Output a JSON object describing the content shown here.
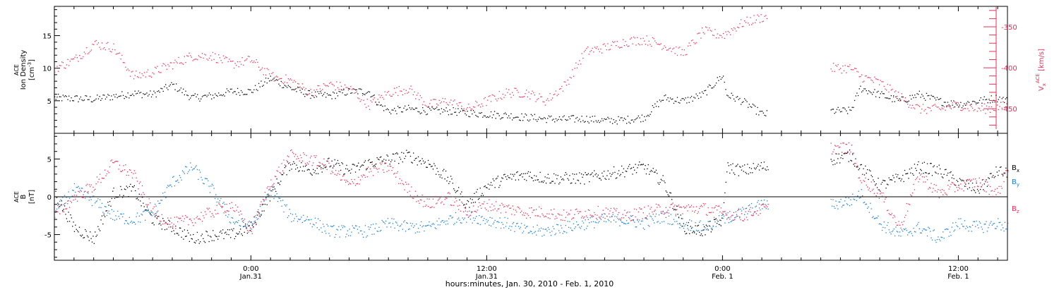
{
  "chart_data": [
    {
      "type": "scatter",
      "title": "",
      "xlabel": "hours:minutes, Jan. 30, 2010 - Feb. 1, 2010",
      "x_units": "hours since 2010-01-30 00:00",
      "xlim": [
        14.0,
        62.5
      ],
      "x_ticks": [
        {
          "x": 24,
          "label": "0:00",
          "sublabel": "Jan.31"
        },
        {
          "x": 36,
          "label": "12:00",
          "sublabel": "Jan.31"
        },
        {
          "x": 48,
          "label": "0:00",
          "sublabel": "Feb. 1"
        },
        {
          "x": 60,
          "label": "12:00",
          "sublabel": "Feb. 1"
        }
      ],
      "ylabel_left": {
        "lines": [
          "ACE",
          "Ion Density"
        ],
        "units": "[cm",
        "units_sup": "-3",
        "units_end": "]"
      },
      "ylim_left": [
        0,
        19.5
      ],
      "yticks_left": [
        5,
        10,
        15
      ],
      "ylabel_right": {
        "main": "V",
        "sub": "x",
        "sup": "ACE",
        "units": "[km/s]"
      },
      "ylim_right": [
        -480,
        -325
      ],
      "yticks_right": [
        -350,
        -400,
        -450
      ],
      "series": [
        {
          "axis": "left",
          "color": "#000000",
          "anchors": [
            [
              14.0,
              5.5
            ],
            [
              16,
              5.3
            ],
            [
              18,
              6.2
            ],
            [
              19,
              6.0
            ],
            [
              20,
              7.5
            ],
            [
              21,
              5.5
            ],
            [
              22,
              5.8
            ],
            [
              23,
              6.5
            ],
            [
              24,
              6.5
            ],
            [
              25,
              8.5
            ],
            [
              26,
              7.0
            ],
            [
              27,
              6.0
            ],
            [
              28,
              5.8
            ],
            [
              29,
              6.5
            ],
            [
              30,
              6.5
            ],
            [
              30.5,
              4.5
            ],
            [
              31,
              3.5
            ],
            [
              32,
              3.8
            ],
            [
              33,
              3.5
            ],
            [
              34,
              3.5
            ],
            [
              35,
              3.2
            ],
            [
              36,
              3.0
            ],
            [
              37,
              2.8
            ],
            [
              38,
              2.5
            ],
            [
              39,
              2.3
            ],
            [
              40,
              2.2
            ],
            [
              41,
              2.3
            ],
            [
              42,
              2.0
            ],
            [
              43,
              2.1
            ],
            [
              44,
              2.5
            ],
            [
              45,
              5.5
            ],
            [
              46,
              5.0
            ],
            [
              47,
              6.0
            ],
            [
              48,
              9.0
            ],
            [
              48.2,
              6.0
            ],
            [
              49,
              5.0
            ],
            [
              50,
              3.0
            ],
            [
              50.3,
              3.0
            ]
          ],
          "segments": [
            [
              14.0,
              50.3
            ],
            [
              53.5,
              62.5
            ]
          ],
          "anchors2": [
            [
              53.5,
              3.5
            ],
            [
              54.5,
              3.5
            ],
            [
              55,
              7.0
            ],
            [
              56,
              6.0
            ],
            [
              57,
              5.0
            ],
            [
              58,
              6.0
            ],
            [
              59,
              5.0
            ],
            [
              60,
              4.5
            ],
            [
              61,
              5.0
            ],
            [
              62,
              5.5
            ],
            [
              62.5,
              5.0
            ]
          ]
        },
        {
          "axis": "right",
          "color": "#e8305a",
          "anchors": [
            [
              14.0,
              -400
            ],
            [
              15,
              -390
            ],
            [
              16,
              -370
            ],
            [
              17,
              -375
            ],
            [
              18,
              -410
            ],
            [
              19,
              -405
            ],
            [
              20,
              -395
            ],
            [
              21,
              -385
            ],
            [
              22,
              -385
            ],
            [
              23,
              -395
            ],
            [
              24,
              -390
            ],
            [
              25,
              -410
            ],
            [
              26,
              -415
            ],
            [
              27,
              -430
            ],
            [
              28,
              -420
            ],
            [
              29,
              -425
            ],
            [
              30,
              -445
            ],
            [
              31,
              -430
            ],
            [
              32,
              -425
            ],
            [
              33,
              -445
            ],
            [
              34,
              -440
            ],
            [
              35,
              -450
            ],
            [
              36,
              -440
            ],
            [
              37,
              -430
            ],
            [
              38,
              -430
            ],
            [
              39,
              -440
            ],
            [
              40,
              -420
            ],
            [
              40.5,
              -400
            ],
            [
              41,
              -380
            ],
            [
              42,
              -375
            ],
            [
              43,
              -368
            ],
            [
              44,
              -365
            ],
            [
              45,
              -372
            ],
            [
              46,
              -382
            ],
            [
              47,
              -355
            ],
            [
              48,
              -360
            ],
            [
              49,
              -345
            ],
            [
              50,
              -338
            ],
            [
              50.3,
              -338
            ]
          ],
          "segments": [
            [
              14.0,
              50.3
            ],
            [
              53.5,
              62.5
            ]
          ],
          "anchors2": [
            [
              53.5,
              -400
            ],
            [
              54.5,
              -400
            ],
            [
              55,
              -410
            ],
            [
              56,
              -418
            ],
            [
              57,
              -435
            ],
            [
              58,
              -450
            ],
            [
              59,
              -450
            ],
            [
              60,
              -445
            ],
            [
              61,
              -450
            ],
            [
              62,
              -448
            ],
            [
              62.5,
              -445
            ]
          ]
        }
      ]
    },
    {
      "type": "scatter",
      "title": "",
      "ylabel": {
        "lines": [
          "ACE",
          "B"
        ],
        "units": "[nT]"
      },
      "ylim": [
        -8.4,
        8.4
      ],
      "yticks": [
        -5,
        0,
        5
      ],
      "zero_line": true,
      "series": [
        {
          "name": "B",
          "sub": "x",
          "color": "#000000",
          "anchors": [
            [
              14.0,
              0.5
            ],
            [
              15,
              -4.0
            ],
            [
              16,
              -5.5
            ],
            [
              17,
              0.5
            ],
            [
              18,
              1.0
            ],
            [
              19,
              -3.0
            ],
            [
              20,
              -4.0
            ],
            [
              21,
              -5.5
            ],
            [
              22,
              -5.0
            ],
            [
              23,
              -5.0
            ],
            [
              24,
              -4.0
            ],
            [
              25,
              0.5
            ],
            [
              26,
              4.5
            ],
            [
              27,
              3.5
            ],
            [
              28,
              4.5
            ],
            [
              29,
              3.5
            ],
            [
              30,
              4.5
            ],
            [
              31,
              5.0
            ],
            [
              32,
              5.5
            ],
            [
              33,
              4.5
            ],
            [
              34,
              2.5
            ],
            [
              35,
              -1.0
            ],
            [
              36,
              1.5
            ],
            [
              37,
              2.5
            ],
            [
              38,
              3.0
            ],
            [
              39,
              2.5
            ],
            [
              40,
              2.5
            ],
            [
              41,
              2.5
            ],
            [
              42,
              3.0
            ],
            [
              43,
              3.5
            ],
            [
              44,
              4.0
            ],
            [
              45,
              2.0
            ],
            [
              46,
              -4.0
            ],
            [
              47,
              -4.5
            ],
            [
              48,
              -3.0
            ],
            [
              48.2,
              4.0
            ],
            [
              49,
              3.5
            ],
            [
              50,
              4.0
            ],
            [
              50.3,
              4.0
            ]
          ],
          "segments": [
            [
              14.0,
              50.3
            ],
            [
              53.5,
              62.5
            ]
          ],
          "anchors2": [
            [
              53.5,
              5.0
            ],
            [
              54.5,
              5.5
            ],
            [
              55,
              4.0
            ],
            [
              56,
              1.5
            ],
            [
              57,
              2.5
            ],
            [
              58,
              4.0
            ],
            [
              59,
              3.5
            ],
            [
              60,
              2.0
            ],
            [
              61,
              1.0
            ],
            [
              62,
              3.5
            ],
            [
              62.5,
              3.0
            ]
          ]
        },
        {
          "name": "B",
          "sub": "y",
          "color": "#1a7fd4",
          "anchors": [
            [
              14.0,
              -2.0
            ],
            [
              15,
              1.0
            ],
            [
              16,
              -0.5
            ],
            [
              17,
              -2.5
            ],
            [
              18,
              -3.0
            ],
            [
              19,
              -2.0
            ],
            [
              20,
              2.0
            ],
            [
              21,
              4.0
            ],
            [
              22,
              1.0
            ],
            [
              23,
              -3.0
            ],
            [
              24,
              -4.0
            ],
            [
              25,
              1.0
            ],
            [
              26,
              -2.5
            ],
            [
              27,
              -3.0
            ],
            [
              28,
              -4.5
            ],
            [
              29,
              -4.5
            ],
            [
              30,
              -4.5
            ],
            [
              31,
              -3.5
            ],
            [
              32,
              -4.0
            ],
            [
              33,
              -4.0
            ],
            [
              34,
              -3.0
            ],
            [
              35,
              -2.5
            ],
            [
              36,
              -3.0
            ],
            [
              37,
              -3.5
            ],
            [
              38,
              -4.5
            ],
            [
              39,
              -4.5
            ],
            [
              40,
              -4.0
            ],
            [
              41,
              -3.5
            ],
            [
              42,
              -3.0
            ],
            [
              43,
              -3.0
            ],
            [
              44,
              -3.5
            ],
            [
              45,
              -2.5
            ],
            [
              46,
              -3.5
            ],
            [
              47,
              -4.0
            ],
            [
              48,
              -3.0
            ],
            [
              49,
              -2.0
            ],
            [
              50,
              -1.0
            ],
            [
              50.3,
              -1.0
            ]
          ],
          "segments": [
            [
              14.0,
              50.3
            ],
            [
              53.5,
              62.5
            ]
          ],
          "anchors2": [
            [
              53.5,
              -1.0
            ],
            [
              54.5,
              -0.5
            ],
            [
              55,
              0.5
            ],
            [
              56,
              -3.5
            ],
            [
              57,
              -5.0
            ],
            [
              58,
              -4.0
            ],
            [
              59,
              -5.5
            ],
            [
              60,
              -3.5
            ],
            [
              61,
              -4.0
            ],
            [
              62,
              -3.5
            ],
            [
              62.5,
              -4.0
            ]
          ]
        },
        {
          "name": "B",
          "sub": "z",
          "color": "#e8305a",
          "anchors": [
            [
              14.0,
              -2.5
            ],
            [
              15,
              0.0
            ],
            [
              16,
              1.5
            ],
            [
              17,
              4.5
            ],
            [
              18,
              3.0
            ],
            [
              19,
              -2.0
            ],
            [
              20,
              -3.5
            ],
            [
              21,
              -3.0
            ],
            [
              22,
              -2.0
            ],
            [
              23,
              -1.0
            ],
            [
              24,
              -4.5
            ],
            [
              25,
              2.0
            ],
            [
              26,
              5.5
            ],
            [
              27,
              5.0
            ],
            [
              28,
              4.0
            ],
            [
              29,
              1.5
            ],
            [
              30,
              3.5
            ],
            [
              31,
              4.0
            ],
            [
              32,
              1.0
            ],
            [
              33,
              -1.0
            ],
            [
              34,
              0.0
            ],
            [
              35,
              -2.0
            ],
            [
              36,
              -1.0
            ],
            [
              37,
              -1.5
            ],
            [
              38,
              -2.0
            ],
            [
              39,
              -2.0
            ],
            [
              40,
              -2.5
            ],
            [
              41,
              -2.0
            ],
            [
              42,
              -2.0
            ],
            [
              43,
              -2.5
            ],
            [
              44,
              -2.0
            ],
            [
              45,
              -1.5
            ],
            [
              46,
              -1.5
            ],
            [
              47,
              -1.5
            ],
            [
              48,
              -2.0
            ],
            [
              49,
              -2.5
            ],
            [
              50,
              -1.5
            ],
            [
              50.3,
              -1.5
            ]
          ],
          "segments": [
            [
              14.0,
              50.3
            ],
            [
              53.5,
              62.5
            ]
          ],
          "anchors2": [
            [
              53.5,
              6.5
            ],
            [
              54.5,
              6.5
            ],
            [
              55,
              2.5
            ],
            [
              56,
              0.5
            ],
            [
              57,
              -4.0
            ],
            [
              58,
              3.0
            ],
            [
              59,
              0.5
            ],
            [
              60,
              1.5
            ],
            [
              61,
              2.0
            ],
            [
              62,
              0.5
            ],
            [
              62.5,
              4.0
            ]
          ]
        }
      ]
    }
  ]
}
